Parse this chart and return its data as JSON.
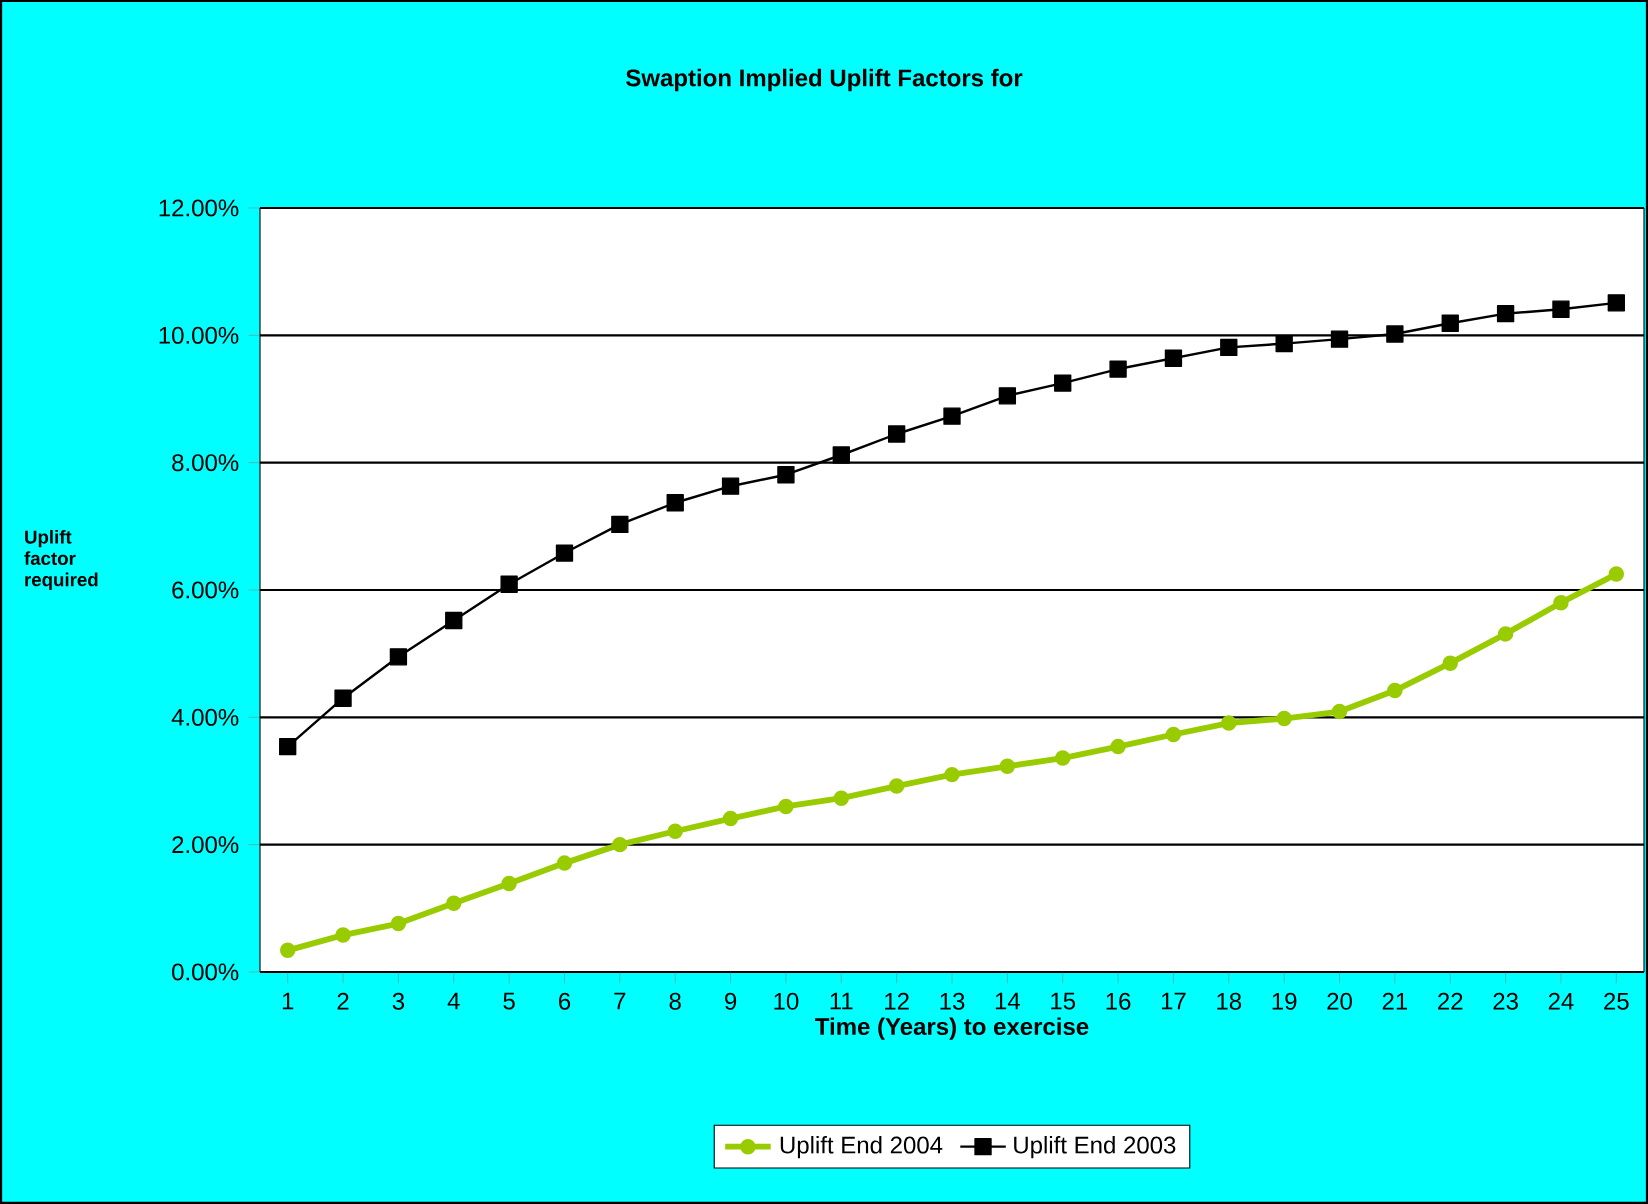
{
  "chart_data": {
    "type": "line",
    "title": "Swaption Implied Uplift Factors for",
    "xlabel": "Time (Years) to exercise",
    "ylabel": "Uplift factor required",
    "categories": [
      "1",
      "2",
      "3",
      "4",
      "5",
      "6",
      "7",
      "8",
      "9",
      "10",
      "11",
      "12",
      "13",
      "14",
      "15",
      "16",
      "17",
      "18",
      "19",
      "20",
      "21",
      "22",
      "23",
      "24",
      "25"
    ],
    "ylim": [
      0,
      12
    ],
    "yticks": [
      {
        "value": 0,
        "label": "0.00%"
      },
      {
        "value": 2,
        "label": "2.00%"
      },
      {
        "value": 4,
        "label": "4.00%"
      },
      {
        "value": 6,
        "label": "6.00%"
      },
      {
        "value": 8,
        "label": "8.00%"
      },
      {
        "value": 10,
        "label": "10.00%"
      },
      {
        "value": 12,
        "label": "12.00%"
      }
    ],
    "grid": "y",
    "legend": "bottom",
    "series": [
      {
        "name": "Uplift End 2004",
        "color": "#99cc00",
        "marker": "circle",
        "values": [
          0.34,
          0.58,
          0.76,
          1.08,
          1.39,
          1.71,
          2.0,
          2.21,
          2.41,
          2.6,
          2.73,
          2.92,
          3.1,
          3.23,
          3.36,
          3.54,
          3.73,
          3.91,
          3.98,
          4.09,
          4.42,
          4.85,
          5.31,
          5.8,
          6.25
        ]
      },
      {
        "name": "Uplift End 2003",
        "color": "#000000",
        "marker": "square",
        "values": [
          3.54,
          4.3,
          4.95,
          5.52,
          6.09,
          6.58,
          7.03,
          7.37,
          7.63,
          7.81,
          8.12,
          8.45,
          8.73,
          9.05,
          9.25,
          9.47,
          9.64,
          9.81,
          9.87,
          9.94,
          10.02,
          10.19,
          10.34,
          10.41,
          10.51
        ]
      }
    ]
  }
}
